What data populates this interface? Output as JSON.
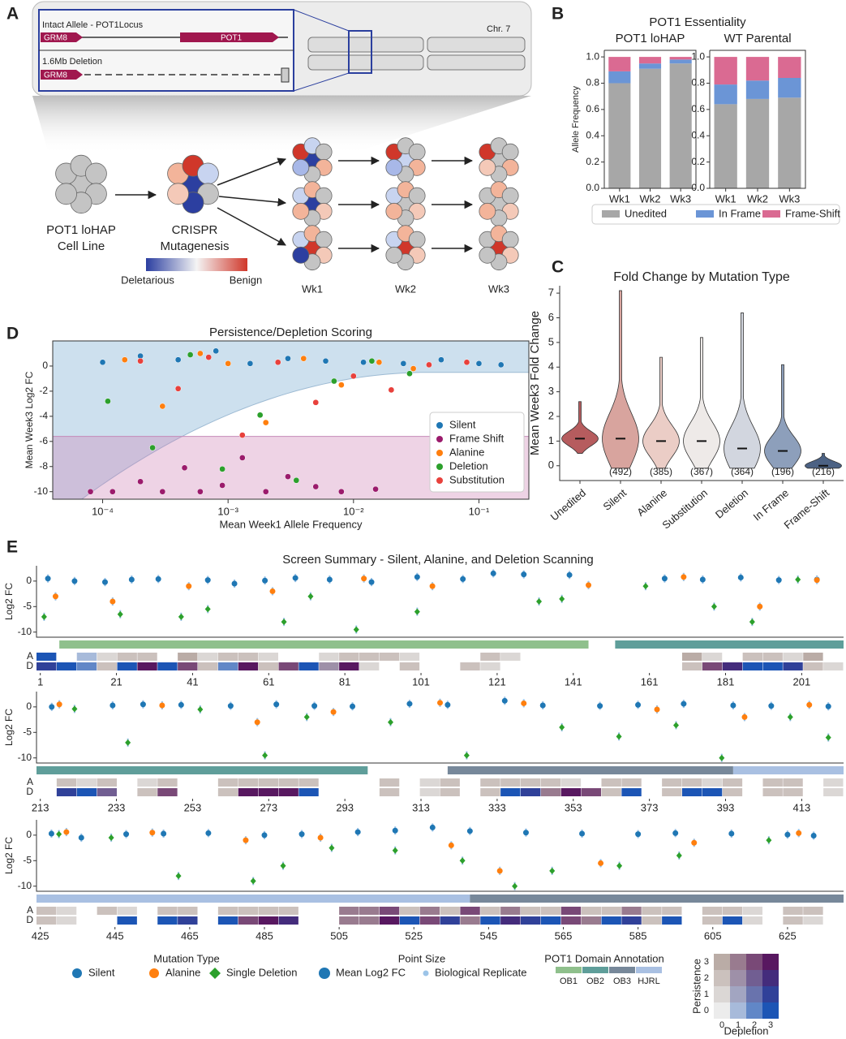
{
  "panels": [
    "A",
    "B",
    "C",
    "D",
    "E"
  ],
  "diagram": {
    "intact_label": "Intact Allele - POT1Locus",
    "gene_left": "GRM8",
    "gene_right": "POT1",
    "deletion_label": "1.6Mb Deletion",
    "deletion_gene": "GRM8",
    "chromosome": "Chr. 7",
    "cell_line": [
      "POT1 loHAP",
      "Cell Line"
    ],
    "mutagenesis": [
      "CRISPR",
      "Mutagenesis"
    ],
    "scale_low": "Deletarious",
    "scale_high": "Benign",
    "weeks": [
      "Wk1",
      "Wk2",
      "Wk3"
    ]
  },
  "chart_data": [
    {
      "type": "stacked_bar",
      "group_title": "POT1 Essentiality",
      "title": "POT1 loHAP",
      "ylabel": "Allele Frequency",
      "categories": [
        "Wk1",
        "Wk2",
        "Wk3"
      ],
      "series": [
        {
          "name": "Unedited",
          "color": "#a7a7a7",
          "values": [
            0.8,
            0.91,
            0.95
          ]
        },
        {
          "name": "In Frame",
          "color": "#6b95d6",
          "values": [
            0.09,
            0.04,
            0.03
          ]
        },
        {
          "name": "Frame-Shift",
          "color": "#da6a92",
          "values": [
            0.11,
            0.05,
            0.02
          ]
        }
      ],
      "ylim": [
        0,
        1.05
      ],
      "yticks": [
        {
          "value": 0,
          "label": "0.0"
        },
        0.2,
        0.4,
        0.6,
        0.8,
        {
          "value": 1,
          "label": "1.0"
        }
      ],
      "legend": "bottom"
    },
    {
      "type": "stacked_bar",
      "title": "WT Parental",
      "categories": [
        "Wk1",
        "Wk2",
        "Wk3"
      ],
      "series": [
        {
          "color": "#a7a7a7",
          "values": [
            0.64,
            0.68,
            0.69
          ]
        },
        {
          "color": "#6b95d6",
          "values": [
            0.15,
            0.14,
            0.15
          ]
        },
        {
          "color": "#da6a92",
          "values": [
            0.21,
            0.18,
            0.16
          ]
        }
      ],
      "ylim": [
        0,
        1.05
      ],
      "yticks": [
        {
          "value": 0,
          "label": "0.0"
        },
        0.2,
        0.4,
        0.6,
        0.8,
        {
          "value": 1,
          "label": "1.0"
        }
      ]
    },
    {
      "type": "violin",
      "title": "Fold Change by Mutation Type",
      "ylabel": "Mean Week3 Fold Change",
      "categories": [
        "Unedited",
        "Silent",
        "Alanine",
        "Substitution",
        "Deletion",
        "In Frame",
        "Frame-Shift"
      ],
      "count_labels": [
        null,
        "(492)",
        "(385)",
        "(367)",
        "(364)",
        "(196)",
        "(216)"
      ],
      "min": [
        0.5,
        -0.1,
        -0.1,
        -0.1,
        -0.1,
        -0.1,
        -0.1
      ],
      "median": [
        1.1,
        1.1,
        1.0,
        1.0,
        0.7,
        0.6,
        0.0
      ],
      "max": [
        2.6,
        7.1,
        4.4,
        5.2,
        6.2,
        4.1,
        0.5
      ],
      "colors": [
        "#b65c5e",
        "#d8a49e",
        "#ebcdc6",
        "#eeeae8",
        "#d2d6df",
        "#8d9fbb",
        "#4c6284"
      ],
      "ylim": [
        -0.6,
        7.3
      ],
      "yticks": [
        0,
        1,
        2,
        3,
        4,
        5,
        6,
        7
      ]
    },
    {
      "type": "scatter",
      "title": "Persistence/Depletion Scoring",
      "xlabel": "Mean Week1 Allele Frequency",
      "ylabel": "Mean Week3 Log2 FC",
      "xscale": "log",
      "xlim": [
        4e-05,
        0.25
      ],
      "xticks": [
        {
          "value": 0.0001,
          "label": "10⁻⁴"
        },
        {
          "value": 0.001,
          "label": "10⁻³"
        },
        {
          "value": 0.01,
          "label": "10⁻²"
        },
        {
          "value": 0.1,
          "label": "10⁻¹"
        }
      ],
      "ylim": [
        -10.6,
        2
      ],
      "yticks": [
        0,
        -2,
        -4,
        -6,
        -8,
        -10
      ],
      "legend": "lower right",
      "series": [
        {
          "name": "Silent",
          "color": "#1f77b4",
          "x": [
            0.0001,
            0.0002,
            0.0004,
            0.0008,
            0.0015,
            0.003,
            0.006,
            0.012,
            0.025,
            0.05,
            0.1,
            0.15
          ],
          "values": [
            0.3,
            0.8,
            0.5,
            1.2,
            0.2,
            0.6,
            0.4,
            0.3,
            0.2,
            0.5,
            0.2,
            0.1
          ]
        },
        {
          "name": "Frame Shift",
          "color": "#9b1b6c",
          "x": [
            8e-05,
            0.00012,
            0.0002,
            0.0003,
            0.00045,
            0.0006,
            0.0009,
            0.0013,
            0.002,
            0.003,
            0.005,
            0.008,
            0.015
          ],
          "values": [
            -10,
            -10,
            -9.2,
            -10,
            -8.1,
            -10,
            -9.5,
            -7.3,
            -10,
            -8.8,
            -9.6,
            -10,
            -9.8
          ]
        },
        {
          "name": "Alanine",
          "color": "#ff7f0e",
          "x": [
            0.00015,
            0.0003,
            0.0006,
            0.001,
            0.002,
            0.004,
            0.008,
            0.016,
            0.03
          ],
          "values": [
            0.5,
            -3.2,
            1,
            0.2,
            -4.5,
            0.6,
            -1.5,
            0.3,
            -0.2
          ]
        },
        {
          "name": "Deletion",
          "color": "#2ca02c",
          "x": [
            0.00011,
            0.00025,
            0.0005,
            0.0009,
            0.0018,
            0.0035,
            0.007,
            0.014,
            0.028
          ],
          "values": [
            -2.8,
            -6.5,
            0.9,
            -8.2,
            -3.9,
            -9.1,
            -1.2,
            0.4,
            -0.6
          ]
        },
        {
          "name": "Substitution",
          "color": "#e8413c",
          "x": [
            0.0002,
            0.0004,
            0.0007,
            0.0013,
            0.0025,
            0.005,
            0.01,
            0.02,
            0.04,
            0.08
          ],
          "values": [
            0.4,
            -1.8,
            0.7,
            -5.5,
            0.3,
            -2.9,
            -0.8,
            -1.9,
            0.1,
            0.3
          ]
        }
      ]
    },
    {
      "type": "strip",
      "title": "Screen Summary - Silent, Alanine, and Deletion Scanning",
      "ylabel": "Log2 FC",
      "track_labels": [
        "A",
        "D"
      ],
      "xlim": [
        0,
        212
      ],
      "xticks": [
        1,
        21,
        41,
        61,
        81,
        101,
        121,
        141,
        161,
        181,
        201
      ],
      "ylim": [
        -11,
        3
      ],
      "yticks": [
        0,
        -5,
        -10
      ],
      "domains": [
        {
          "domain": 0,
          "start": 6,
          "end": 145
        },
        {
          "domain": 1,
          "start": 152,
          "end": 212
        }
      ],
      "tracks": [
        [
          3,
          null,
          1,
          4,
          8,
          8,
          null,
          12,
          4,
          8,
          8,
          4,
          null,
          null,
          4,
          8,
          8,
          8,
          4,
          null,
          null,
          null,
          8,
          4,
          null,
          null,
          null,
          null,
          null,
          null,
          null,
          null,
          12,
          4,
          null,
          8,
          8,
          4,
          12,
          null
        ],
        [
          7,
          3,
          2,
          8,
          3,
          15,
          3,
          14,
          8,
          2,
          15,
          8,
          14,
          3,
          9,
          15,
          4,
          null,
          8,
          null,
          null,
          8,
          4,
          null,
          null,
          null,
          null,
          null,
          null,
          null,
          null,
          null,
          8,
          14,
          11,
          3,
          3,
          7,
          8,
          4
        ]
      ],
      "series": [
        {
          "x": [
            3,
            10,
            18,
            25,
            32,
            45,
            52,
            60,
            68,
            77,
            88,
            100,
            112,
            120,
            128,
            140,
            165,
            175,
            185,
            195,
            205
          ],
          "values": [
            0.5,
            0,
            -0.2,
            0.3,
            0.4,
            0.2,
            -0.5,
            0.1,
            0.6,
            0.3,
            -0.2,
            0.8,
            0.4,
            1.5,
            1.3,
            1.2,
            0.5,
            0.3,
            0.7,
            0.2,
            0.3
          ]
        },
        {
          "x": [
            5,
            20,
            40,
            62,
            86,
            104,
            145,
            170,
            190,
            205
          ],
          "values": [
            -3,
            -4,
            -1,
            -2,
            0.5,
            -1,
            -0.8,
            0.8,
            -5,
            0.2
          ]
        },
        {
          "x": [
            2,
            22,
            38,
            45,
            65,
            72,
            84,
            100,
            132,
            138,
            160,
            178,
            188,
            200
          ],
          "values": [
            -7,
            -6.5,
            -7,
            -5.5,
            -8,
            -3,
            -9.5,
            -6,
            -4,
            -3.5,
            -1,
            -5,
            -8,
            0.3
          ]
        }
      ]
    },
    {
      "type": "strip",
      "ylabel": "Log2 FC",
      "track_labels": [
        "A",
        "D"
      ],
      "xlim": [
        212,
        424
      ],
      "xticks": [
        213,
        233,
        253,
        273,
        293,
        313,
        333,
        353,
        373,
        393,
        413
      ],
      "ylim": [
        -11,
        3
      ],
      "yticks": [
        0,
        -5,
        -10
      ],
      "domains": [
        {
          "domain": 1,
          "start": 212,
          "end": 299
        },
        {
          "domain": 2,
          "start": 320,
          "end": 395
        },
        {
          "domain": 3,
          "start": 395,
          "end": 424
        }
      ],
      "tracks": [
        [
          null,
          8,
          4,
          8,
          null,
          4,
          8,
          null,
          null,
          8,
          8,
          8,
          8,
          8,
          null,
          null,
          null,
          8,
          null,
          4,
          8,
          null,
          8,
          8,
          8,
          8,
          4,
          null,
          8,
          8,
          null,
          8,
          8,
          4,
          8,
          null,
          8,
          8,
          null,
          4
        ],
        [
          null,
          7,
          3,
          10,
          null,
          8,
          14,
          null,
          null,
          8,
          15,
          15,
          15,
          3,
          null,
          null,
          null,
          8,
          null,
          4,
          8,
          null,
          8,
          3,
          7,
          13,
          15,
          14,
          8,
          3,
          null,
          8,
          3,
          3,
          8,
          null,
          8,
          8,
          null,
          4
        ]
      ],
      "series": [
        {
          "x": [
            216,
            232,
            240,
            250,
            263,
            275,
            285,
            295,
            310,
            320,
            335,
            345,
            360,
            370,
            382,
            395,
            405,
            420
          ],
          "values": [
            0,
            0.3,
            0.5,
            0.4,
            0.2,
            0.5,
            0.2,
            0.1,
            0.6,
            0.4,
            1.2,
            0.3,
            0.2,
            0.4,
            0.6,
            0.3,
            0.2,
            0.1
          ]
        },
        {
          "x": [
            218,
            245,
            270,
            290,
            318,
            340,
            375,
            398,
            415
          ],
          "values": [
            0.5,
            0.3,
            -3,
            -1,
            0.8,
            0.7,
            -0.5,
            -2,
            0.4
          ]
        },
        {
          "x": [
            222,
            236,
            255,
            272,
            283,
            305,
            325,
            350,
            365,
            380,
            392,
            410,
            420
          ],
          "values": [
            -0.4,
            -7,
            -0.5,
            -9.5,
            -2,
            -3,
            -9.5,
            -4,
            -5.8,
            -3.6,
            -10,
            -2,
            -6
          ]
        }
      ]
    },
    {
      "type": "strip",
      "ylabel": "Log2 FC",
      "track_labels": [
        "A",
        "D"
      ],
      "xlim": [
        424,
        640
      ],
      "xticks": [
        425,
        445,
        465,
        485,
        505,
        525,
        545,
        565,
        585,
        605,
        625
      ],
      "ylim": [
        -11,
        3
      ],
      "yticks": [
        0,
        -5,
        -10
      ],
      "domains": [
        {
          "domain": 3,
          "start": 424,
          "end": 540
        },
        {
          "domain": 2,
          "start": 540,
          "end": 640
        }
      ],
      "tracks": [
        [
          8,
          4,
          null,
          8,
          4,
          null,
          8,
          8,
          null,
          8,
          8,
          8,
          8,
          null,
          null,
          13,
          13,
          14,
          8,
          13,
          8,
          14,
          8,
          13,
          8,
          8,
          14,
          8,
          8,
          13,
          8,
          8,
          null,
          8,
          8,
          4,
          null,
          8,
          8,
          null
        ],
        [
          8,
          4,
          null,
          null,
          3,
          null,
          3,
          7,
          null,
          3,
          14,
          15,
          11,
          null,
          null,
          13,
          13,
          15,
          3,
          14,
          7,
          13,
          3,
          11,
          7,
          3,
          14,
          13,
          3,
          7,
          8,
          3,
          null,
          8,
          3,
          4,
          null,
          8,
          4,
          null
        ]
      ],
      "series": [
        {
          "x": [
            428,
            436,
            448,
            458,
            470,
            485,
            495,
            510,
            520,
            530,
            540,
            555,
            570,
            585,
            595,
            610,
            625,
            632
          ],
          "values": [
            0.3,
            -0.5,
            0.2,
            0.3,
            0.4,
            0,
            0.2,
            0.6,
            0.9,
            1.5,
            0.8,
            0.5,
            0.3,
            0.2,
            0.4,
            0.3,
            0.1,
            -0.1
          ]
        },
        {
          "x": [
            432,
            455,
            480,
            500,
            535,
            548,
            575,
            600,
            628
          ],
          "values": [
            0.6,
            0.5,
            -1,
            -0.5,
            -2,
            -7,
            -5.5,
            -1.5,
            0.4
          ]
        },
        {
          "x": [
            430,
            444,
            462,
            482,
            490,
            503,
            520,
            538,
            552,
            562,
            580,
            596,
            620
          ],
          "values": [
            0.2,
            -0.5,
            -8,
            -9,
            -6,
            -2.5,
            -3,
            -5,
            -10,
            -7,
            -6,
            -4,
            -1
          ]
        }
      ]
    }
  ],
  "legend": {
    "mutation_title": "Mutation Type",
    "mutation_items": [
      {
        "name": "Silent",
        "color": "#1f77b4"
      },
      {
        "name": "Alanine",
        "color": "#ff7f0e"
      },
      {
        "name": "Single Deletion",
        "color": "#2ca02c"
      }
    ],
    "size_title": "Point Size",
    "size_items": [
      "Mean Log2 FC",
      "Biological Replicate"
    ],
    "domain_title": "POT1 Domain Annotation",
    "domains": [
      {
        "name": "OB1",
        "color": "#8fc08c"
      },
      {
        "name": "OB2",
        "color": "#5f9e9a"
      },
      {
        "name": "OB3",
        "color": "#77889a"
      },
      {
        "name": "HJRL",
        "color": "#a9c0e2"
      }
    ],
    "matrix": {
      "ylabel": "Persistence",
      "xlabel": "Depletion",
      "xticks": [
        0,
        1,
        2,
        3
      ],
      "yticks": [
        0,
        1,
        2,
        3
      ]
    }
  }
}
